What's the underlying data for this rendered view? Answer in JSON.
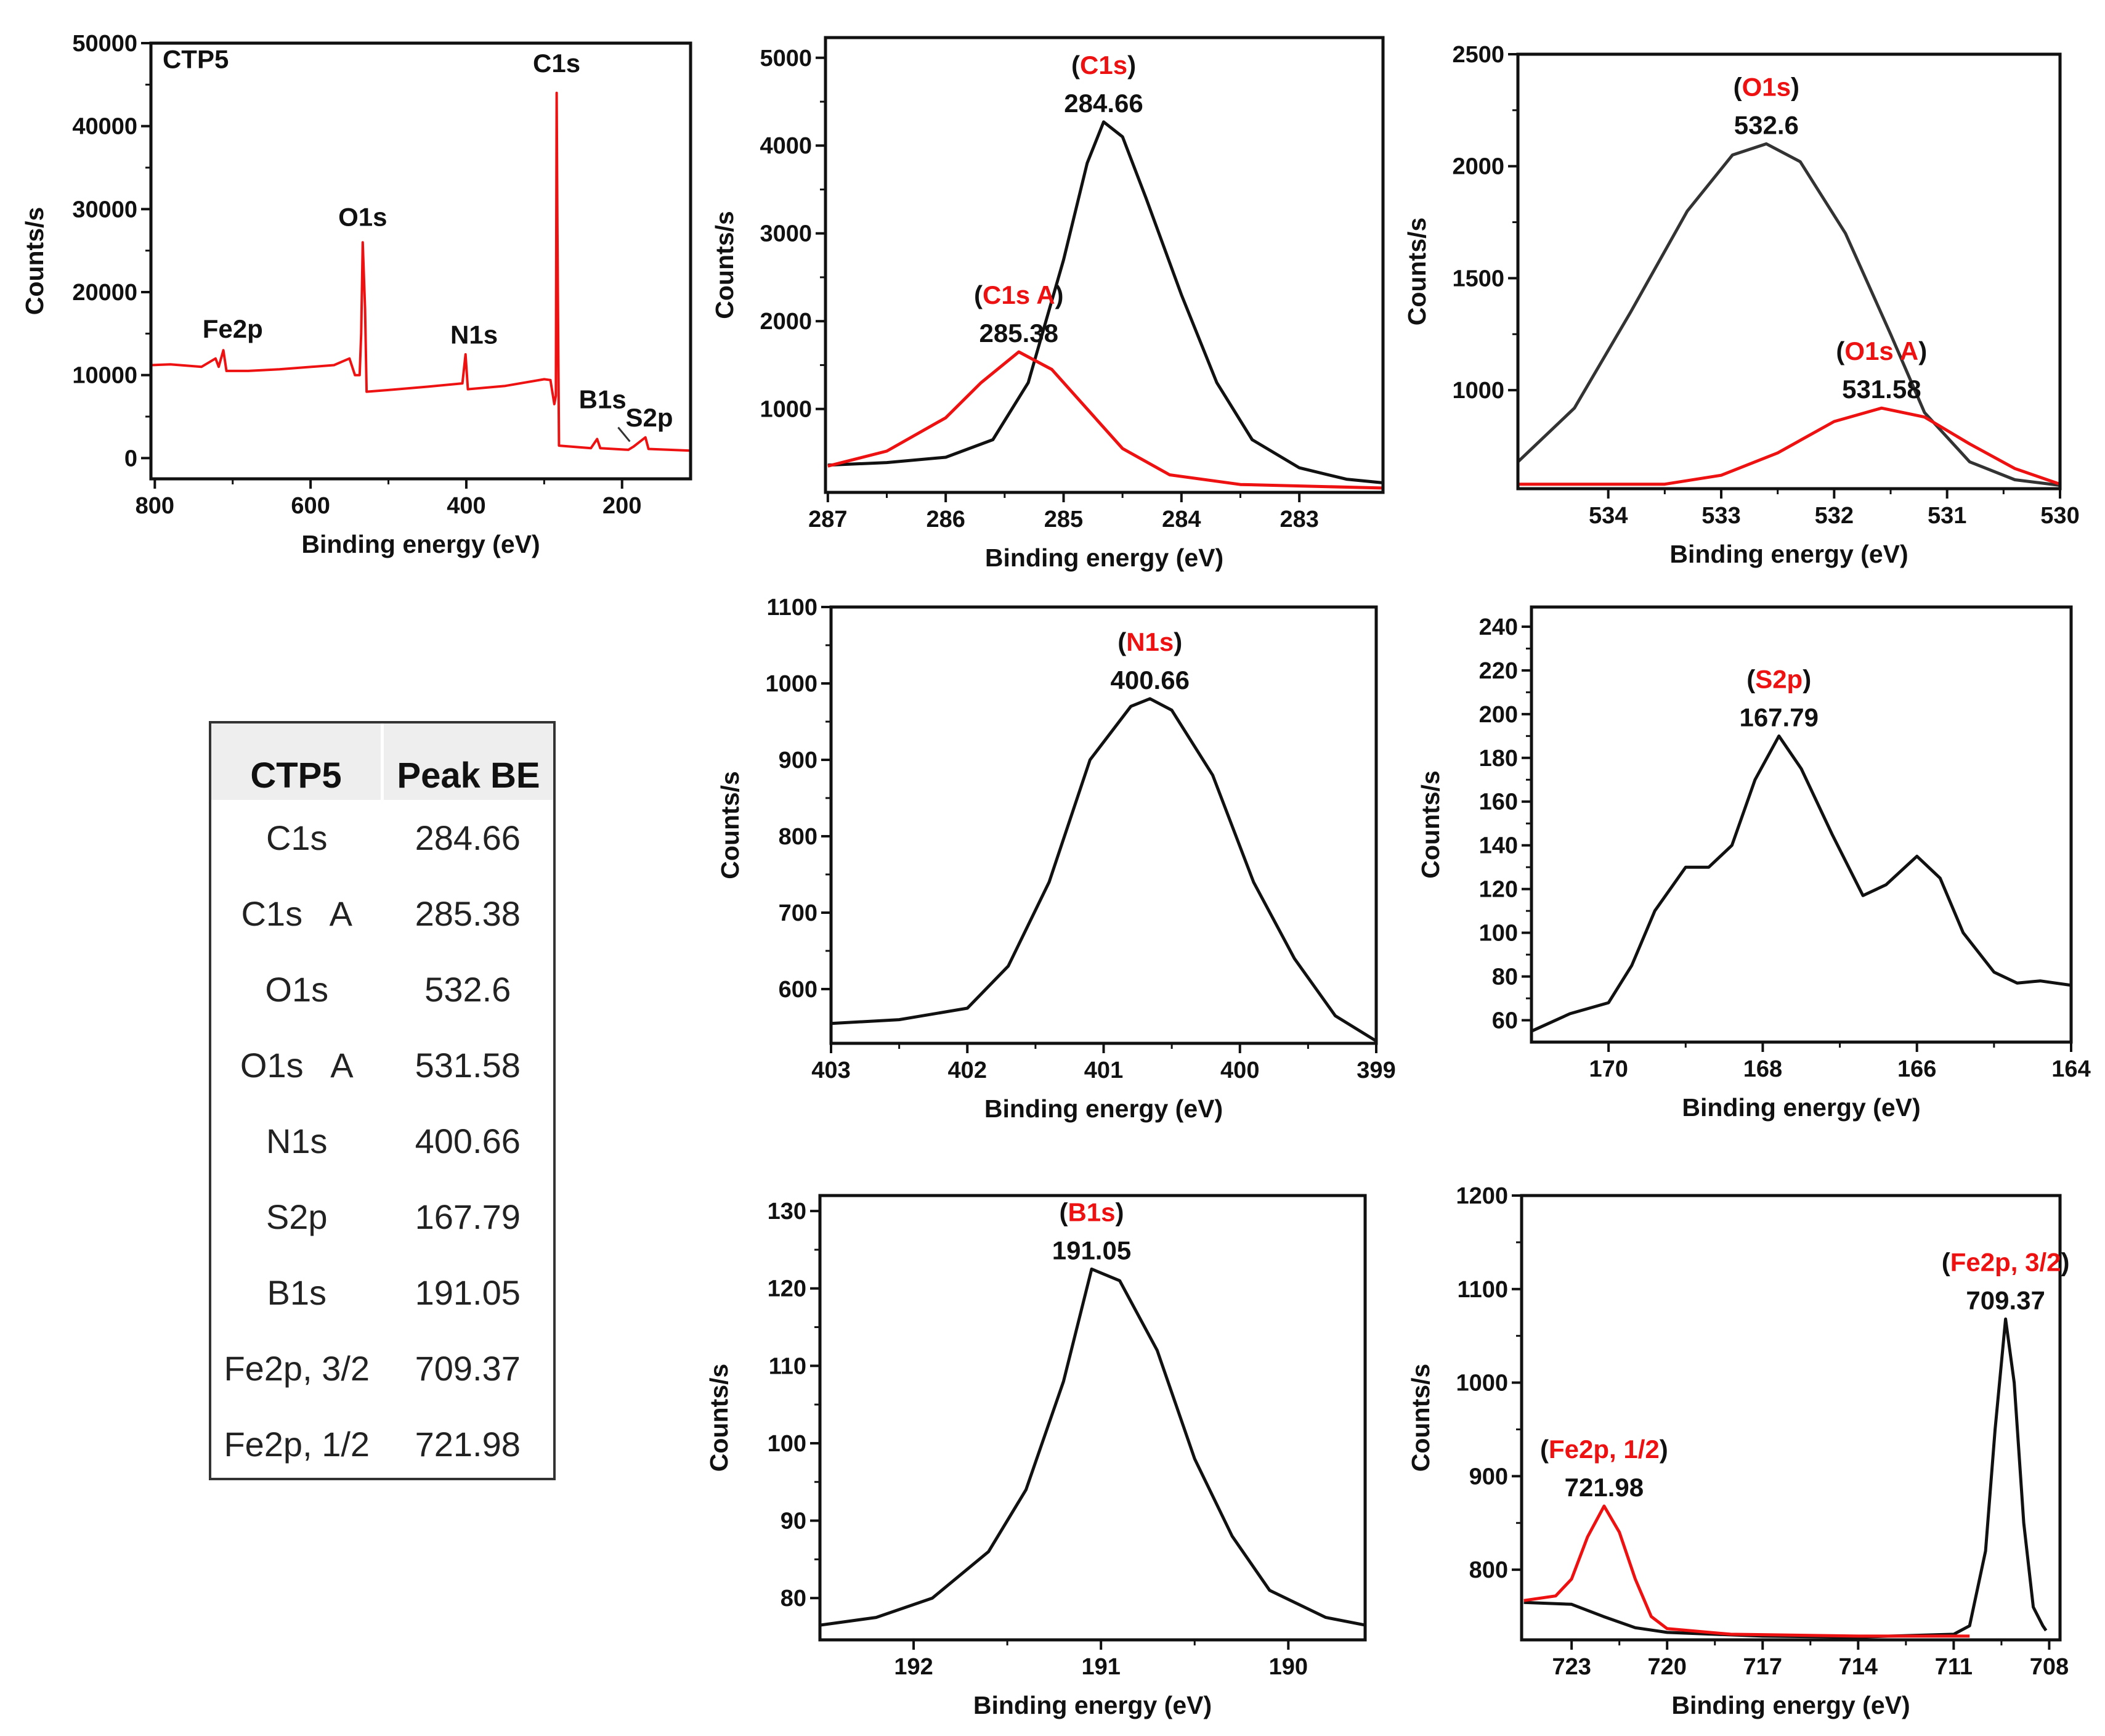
{
  "table": {
    "headers": [
      "CTP5",
      "Peak BE"
    ],
    "rows": [
      [
        "C1s",
        "284.66"
      ],
      [
        "C1s   A",
        "285.38"
      ],
      [
        "O1s",
        "532.6"
      ],
      [
        "O1s   A",
        "531.58"
      ],
      [
        "N1s",
        "400.66"
      ],
      [
        "S2p",
        "167.79"
      ],
      [
        "B1s",
        "191.05"
      ],
      [
        "Fe2p, 3/2",
        "709.37"
      ],
      [
        "Fe2p, 1/2",
        "721.98"
      ]
    ]
  },
  "chart_data": [
    {
      "id": "survey",
      "type": "line",
      "xlabel": "Binding energy (eV)",
      "ylabel": "Counts/s",
      "xlim": [
        805,
        112
      ],
      "ylim": [
        -2500,
        50000
      ],
      "xticks": [
        800,
        600,
        400,
        200
      ],
      "yticks": [
        0,
        10000,
        20000,
        30000,
        40000,
        50000
      ],
      "series": [
        {
          "name": "CTP5 survey",
          "color": "#ee1111",
          "points": [
            [
              805,
              11200
            ],
            [
              780,
              11300
            ],
            [
              740,
              11000
            ],
            [
              722,
              12000
            ],
            [
              718,
              11000
            ],
            [
              712,
              13000
            ],
            [
              708,
              10500
            ],
            [
              680,
              10500
            ],
            [
              640,
              10700
            ],
            [
              570,
              11200
            ],
            [
              550,
              12000
            ],
            [
              543,
              10000
            ],
            [
              537,
              10000
            ],
            [
              535,
              15000
            ],
            [
              533,
              26000
            ],
            [
              530,
              18000
            ],
            [
              528,
              8000
            ],
            [
              500,
              8200
            ],
            [
              450,
              8600
            ],
            [
              405,
              9000
            ],
            [
              401,
              12500
            ],
            [
              398,
              8300
            ],
            [
              350,
              8700
            ],
            [
              300,
              9500
            ],
            [
              292,
              9400
            ],
            [
              287,
              6500
            ],
            [
              285,
              7500
            ],
            [
              284,
              44000
            ],
            [
              283,
              28000
            ],
            [
              281,
              1500
            ],
            [
              240,
              1200
            ],
            [
              232,
              2300
            ],
            [
              228,
              1200
            ],
            [
              192,
              1000
            ],
            [
              185,
              1400
            ],
            [
              170,
              2500
            ],
            [
              166,
              1100
            ],
            [
              112,
              900
            ]
          ]
        }
      ],
      "annotations": [
        {
          "text": "CTP5",
          "at": [
            790,
            47000
          ],
          "color": "#111111",
          "align": "start"
        },
        {
          "text": "C1s",
          "at": [
            284,
            46500
          ],
          "color": "#111111"
        },
        {
          "text": "O1s",
          "at": [
            533,
            28000
          ],
          "color": "#111111"
        },
        {
          "text": "Fe2p",
          "at": [
            700,
            14500
          ],
          "color": "#111111"
        },
        {
          "text": "N1s",
          "at": [
            390,
            13800
          ],
          "color": "#111111"
        },
        {
          "text": "B1s",
          "at": [
            225,
            6000
          ],
          "color": "#111111"
        },
        {
          "text": "S2p",
          "at": [
            165,
            3800
          ],
          "color": "#111111"
        }
      ]
    },
    {
      "id": "c1s",
      "type": "line",
      "xlabel": "Binding energy (eV)",
      "ylabel": "Counts/s",
      "xlim": [
        287.02,
        282.29
      ],
      "ylim": [
        50,
        5230
      ],
      "xticks": [
        287,
        286,
        285,
        284,
        283
      ],
      "yticks": [
        1000,
        2000,
        3000,
        4000,
        5000
      ],
      "series": [
        {
          "name": "C1s",
          "color": "#111111",
          "points": [
            [
              287,
              360
            ],
            [
              286.5,
              390
            ],
            [
              286,
              450
            ],
            [
              285.6,
              650
            ],
            [
              285.3,
              1300
            ],
            [
              285,
              2700
            ],
            [
              284.8,
              3800
            ],
            [
              284.66,
              4270
            ],
            [
              284.5,
              4100
            ],
            [
              284.3,
              3400
            ],
            [
              284,
              2300
            ],
            [
              283.7,
              1300
            ],
            [
              283.4,
              650
            ],
            [
              283,
              330
            ],
            [
              282.6,
              200
            ],
            [
              282.3,
              160
            ]
          ]
        },
        {
          "name": "C1s A",
          "color": "#ee1111",
          "points": [
            [
              287,
              350
            ],
            [
              286.5,
              520
            ],
            [
              286,
              900
            ],
            [
              285.7,
              1300
            ],
            [
              285.38,
              1650
            ],
            [
              285.1,
              1450
            ],
            [
              284.8,
              1000
            ],
            [
              284.5,
              550
            ],
            [
              284.1,
              250
            ],
            [
              283.5,
              140
            ],
            [
              282.3,
              100
            ]
          ]
        }
      ],
      "peak_labels": [
        {
          "name": "C1s",
          "value": "284.66",
          "at": [
            284.66,
            4270
          ]
        },
        {
          "name": "C1s A",
          "value": "285.38",
          "at": [
            285.38,
            1650
          ]
        }
      ]
    },
    {
      "id": "o1s",
      "type": "line",
      "xlabel": "Binding energy (eV)",
      "ylabel": "Counts/s",
      "xlim": [
        534.8,
        530
      ],
      "ylim": [
        560,
        2500
      ],
      "xticks": [
        534,
        533,
        532,
        531,
        530
      ],
      "yticks": [
        1000,
        1500,
        2000,
        2500
      ],
      "series": [
        {
          "name": "O1s",
          "color": "#333333",
          "points": [
            [
              534.8,
              680
            ],
            [
              534.3,
              920
            ],
            [
              533.8,
              1350
            ],
            [
              533.3,
              1800
            ],
            [
              532.9,
              2050
            ],
            [
              532.6,
              2100
            ],
            [
              532.3,
              2020
            ],
            [
              531.9,
              1700
            ],
            [
              531.5,
              1250
            ],
            [
              531.2,
              900
            ],
            [
              530.8,
              680
            ],
            [
              530.4,
              600
            ],
            [
              530,
              575
            ]
          ]
        },
        {
          "name": "O1s A",
          "color": "#ee1111",
          "points": [
            [
              534.8,
              580
            ],
            [
              533.5,
              580
            ],
            [
              533,
              620
            ],
            [
              532.5,
              720
            ],
            [
              532,
              860
            ],
            [
              531.58,
              920
            ],
            [
              531.2,
              880
            ],
            [
              530.8,
              760
            ],
            [
              530.4,
              650
            ],
            [
              530,
              580
            ]
          ]
        }
      ],
      "peak_labels": [
        {
          "name": "O1s",
          "value": "532.6",
          "at": [
            532.6,
            2100
          ]
        },
        {
          "name": "O1s A",
          "value": "531.58",
          "at": [
            531.58,
            920
          ]
        }
      ]
    },
    {
      "id": "n1s",
      "type": "line",
      "xlabel": "Binding energy (eV)",
      "ylabel": "Counts/s",
      "xlim": [
        403,
        399
      ],
      "ylim": [
        529,
        1100
      ],
      "xticks": [
        403,
        402,
        401,
        400,
        399
      ],
      "yticks": [
        600,
        700,
        800,
        900,
        1000,
        1100
      ],
      "series": [
        {
          "name": "N1s",
          "color": "#111111",
          "points": [
            [
              403,
              555
            ],
            [
              402.5,
              560
            ],
            [
              402,
              575
            ],
            [
              401.7,
              630
            ],
            [
              401.4,
              740
            ],
            [
              401.1,
              900
            ],
            [
              400.8,
              970
            ],
            [
              400.66,
              980
            ],
            [
              400.5,
              965
            ],
            [
              400.2,
              880
            ],
            [
              399.9,
              740
            ],
            [
              399.6,
              640
            ],
            [
              399.3,
              565
            ],
            [
              399,
              532
            ]
          ]
        }
      ],
      "peak_labels": [
        {
          "name": "N1s",
          "value": "400.66",
          "at": [
            400.66,
            980
          ]
        }
      ]
    },
    {
      "id": "s2p",
      "type": "line",
      "xlabel": "Binding energy (eV)",
      "ylabel": "Counts/s",
      "xlim": [
        171,
        164
      ],
      "ylim": [
        50,
        249
      ],
      "xticks": [
        170,
        168,
        166,
        164
      ],
      "yticks": [
        60,
        80,
        100,
        120,
        140,
        160,
        180,
        200,
        220,
        240
      ],
      "series": [
        {
          "name": "S2p",
          "color": "#111111",
          "points": [
            [
              171,
              55
            ],
            [
              170.5,
              63
            ],
            [
              170,
              68
            ],
            [
              169.7,
              85
            ],
            [
              169.4,
              110
            ],
            [
              169,
              130
            ],
            [
              168.7,
              130
            ],
            [
              168.4,
              140
            ],
            [
              168.1,
              170
            ],
            [
              167.79,
              190
            ],
            [
              167.5,
              175
            ],
            [
              167.1,
              145
            ],
            [
              166.7,
              117
            ],
            [
              166.4,
              122
            ],
            [
              166,
              135
            ],
            [
              165.7,
              125
            ],
            [
              165.4,
              100
            ],
            [
              165,
              82
            ],
            [
              164.7,
              77
            ],
            [
              164.4,
              78
            ],
            [
              164,
              76
            ]
          ]
        }
      ],
      "peak_labels": [
        {
          "name": "S2p",
          "value": "167.79",
          "at": [
            167.79,
            190
          ]
        }
      ]
    },
    {
      "id": "b1s",
      "type": "line",
      "xlabel": "Binding energy (eV)",
      "ylabel": "Counts/s",
      "xlim": [
        192.5,
        189.59
      ],
      "ylim": [
        74.6,
        132
      ],
      "xticks": [
        192,
        191,
        190
      ],
      "yticks": [
        80,
        90,
        100,
        110,
        120,
        130
      ],
      "series": [
        {
          "name": "B1s",
          "color": "#111111",
          "points": [
            [
              192.5,
              76.5
            ],
            [
              192.2,
              77.5
            ],
            [
              191.9,
              80
            ],
            [
              191.6,
              86
            ],
            [
              191.4,
              94
            ],
            [
              191.2,
              108
            ],
            [
              191.05,
              122.5
            ],
            [
              190.9,
              121
            ],
            [
              190.7,
              112
            ],
            [
              190.5,
              98
            ],
            [
              190.3,
              88
            ],
            [
              190.1,
              81
            ],
            [
              189.8,
              77.5
            ],
            [
              189.59,
              76.5
            ]
          ]
        }
      ],
      "peak_labels": [
        {
          "name": "B1s",
          "value": "191.05",
          "at": [
            191.05,
            122.5
          ]
        }
      ]
    },
    {
      "id": "fe2p",
      "type": "line",
      "xlabel": "Binding energy (eV)",
      "ylabel": "Counts/s",
      "xlim": [
        724.57,
        707.66
      ],
      "ylim": [
        725,
        1200
      ],
      "xticks": [
        723,
        720,
        717,
        714,
        711,
        708
      ],
      "yticks": [
        800,
        900,
        1000,
        1100,
        1200
      ],
      "series": [
        {
          "name": "Fe2p, 3/2",
          "color": "#111111",
          "points": [
            [
              724.5,
              765
            ],
            [
              723,
              763
            ],
            [
              722,
              750
            ],
            [
              721,
              738
            ],
            [
              720,
              733
            ],
            [
              717,
              729
            ],
            [
              714,
              728
            ],
            [
              711,
              731
            ],
            [
              710.5,
              740
            ],
            [
              710,
              820
            ],
            [
              709.7,
              950
            ],
            [
              709.37,
              1068
            ],
            [
              709.1,
              1000
            ],
            [
              708.8,
              850
            ],
            [
              708.5,
              760
            ],
            [
              708.2,
              740
            ],
            [
              708.1,
              735
            ]
          ]
        },
        {
          "name": "Fe2p, 1/2",
          "color": "#ee1111",
          "points": [
            [
              724.5,
              767
            ],
            [
              723.5,
              772
            ],
            [
              723,
              790
            ],
            [
              722.5,
              835
            ],
            [
              721.98,
              868
            ],
            [
              721.5,
              840
            ],
            [
              721,
              790
            ],
            [
              720.5,
              750
            ],
            [
              720,
              737
            ],
            [
              718,
              731
            ],
            [
              714,
              729
            ],
            [
              710.5,
              729
            ]
          ]
        }
      ],
      "peak_labels": [
        {
          "name": "Fe2p, 3/2",
          "value": "709.37",
          "at": [
            709.37,
            1068
          ]
        },
        {
          "name": "Fe2p, 1/2",
          "value": "721.98",
          "at": [
            721.98,
            868
          ]
        }
      ]
    }
  ]
}
